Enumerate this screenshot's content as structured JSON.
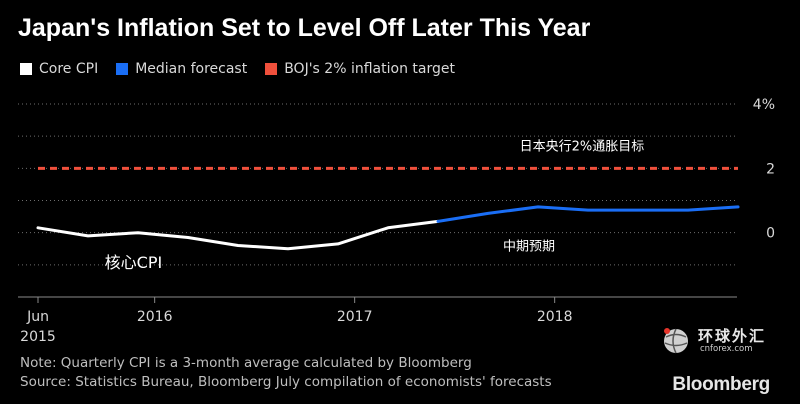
{
  "title": "Japan's Inflation Set to Level Off Later This Year",
  "legend": [
    {
      "label": "Core CPI",
      "color": "#ffffff"
    },
    {
      "label": "Median forecast",
      "color": "#1a6ef5"
    },
    {
      "label": "BOJ's 2% inflation target",
      "color": "#f0503c"
    }
  ],
  "chart_data": {
    "type": "line",
    "ylim": [
      -2,
      4
    ],
    "yticks": [
      {
        "v": 4,
        "label": "4%"
      },
      {
        "v": 2,
        "label": "2"
      },
      {
        "v": 0,
        "label": "0"
      }
    ],
    "xticks": [
      {
        "x": "2015-06",
        "label": "Jun",
        "label2": "2015"
      },
      {
        "x": "2016-01",
        "label": "2016",
        "label2": ""
      },
      {
        "x": "2017-01",
        "label": "2017",
        "label2": ""
      },
      {
        "x": "2018-01",
        "label": "2018",
        "label2": ""
      }
    ],
    "series": [
      {
        "name": "Core CPI",
        "color": "#ffffff",
        "points": [
          [
            "2015-06",
            0.15
          ],
          [
            "2015-09",
            -0.1
          ],
          [
            "2015-12",
            0.0
          ],
          [
            "2016-03",
            -0.15
          ],
          [
            "2016-06",
            -0.4
          ],
          [
            "2016-09",
            -0.5
          ],
          [
            "2016-12",
            -0.35
          ],
          [
            "2017-03",
            0.15
          ],
          [
            "2017-06",
            0.35
          ]
        ]
      },
      {
        "name": "Median forecast",
        "color": "#1a6ef5",
        "points": [
          [
            "2017-06",
            0.35
          ],
          [
            "2017-09",
            0.6
          ],
          [
            "2017-12",
            0.8
          ],
          [
            "2018-03",
            0.7
          ],
          [
            "2018-06",
            0.7
          ],
          [
            "2018-09",
            0.7
          ],
          [
            "2018-12",
            0.8
          ]
        ]
      }
    ],
    "target": {
      "value": 2,
      "color": "#f0503c",
      "name": "BOJ's 2% inflation target"
    },
    "annotations": [
      {
        "text": "日本央行2%通胀目标",
        "x": "2018-01",
        "y": 2.55
      },
      {
        "text": "中期预期",
        "x": "2017-12",
        "y": -0.55
      },
      {
        "text": "核心CPI",
        "x": "2015-10",
        "y": -1.1
      }
    ]
  },
  "notes": {
    "note": "Note: Quarterly CPI is a 3-month average calculated by Bloomberg",
    "source": "Source: Statistics Bureau, Bloomberg July compilation of economists' forecasts"
  },
  "brand": "Bloomberg",
  "watermark": {
    "cn": "环球外汇",
    "url": "cnforex.com"
  }
}
